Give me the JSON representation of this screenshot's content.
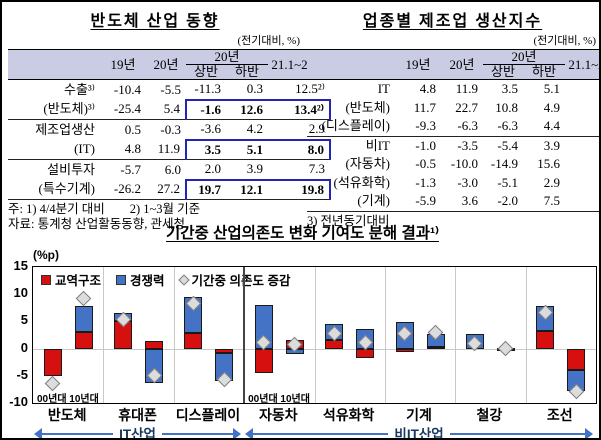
{
  "left_table": {
    "title": "반도체 산업 동향",
    "unit": "(전기대비, %)",
    "col_headers": {
      "y19": "19년",
      "y20": "20년",
      "y20_group": "20년",
      "half1": "상반",
      "half2": "하반",
      "recent": "21.1~2월¹⁾"
    },
    "rows": [
      {
        "label": "수출³⁾",
        "values": [
          "-10.4",
          "-5.5",
          "-11.3",
          "0.3",
          "12.5²⁾"
        ],
        "boxed": false,
        "sep": false
      },
      {
        "label": "(반도체)³⁾",
        "values": [
          "-25.4",
          "5.4",
          "-1.6",
          "12.6",
          "13.4²⁾"
        ],
        "boxed": true,
        "sep": true
      },
      {
        "label": "제조업생산",
        "values": [
          "0.5",
          "-0.3",
          "-3.6",
          "4.2",
          "2.9"
        ],
        "boxed": false,
        "sep": false
      },
      {
        "label": "(IT)",
        "values": [
          "4.8",
          "11.9",
          "3.5",
          "5.1",
          "8.0"
        ],
        "boxed": true,
        "sep": true
      },
      {
        "label": "설비투자",
        "values": [
          "-5.7",
          "6.0",
          "2.0",
          "3.9",
          "7.3"
        ],
        "boxed": false,
        "sep": false
      },
      {
        "label": "(특수기계)",
        "values": [
          "-26.2",
          "27.2",
          "19.7",
          "12.1",
          "19.8"
        ],
        "boxed": true,
        "sep": true
      }
    ],
    "notes": [
      "주: 1) 4/4분기 대비        2) 1~3월 기준",
      "자료: 통계청 산업활동동향, 관세청"
    ]
  },
  "right_table": {
    "title": "업종별 제조업 생산지수",
    "unit": "(전기대비, %)",
    "col_headers": {
      "y19": "19년",
      "y20": "20년",
      "y20_group": "20년",
      "half1": "상반",
      "half2": "하반",
      "recent": "21.1~2월¹⁾"
    },
    "rows": [
      {
        "label": "IT",
        "values": [
          "4.8",
          "11.9",
          "3.5",
          "5.1",
          "8.0"
        ],
        "boxed": false,
        "sep": false
      },
      {
        "label": "(반도체)",
        "values": [
          "11.7",
          "22.7",
          "10.8",
          "4.9",
          "13.7"
        ],
        "boxed": false,
        "sep": false
      },
      {
        "label": "(디스플레이)",
        "values": [
          "-9.3",
          "-6.3",
          "-6.3",
          "4.4",
          "-5.7"
        ],
        "boxed": false,
        "sep": true
      },
      {
        "label": "비IT",
        "values": [
          "-1.0",
          "-3.5",
          "-5.4",
          "3.9",
          "1.6"
        ],
        "boxed": false,
        "sep": false
      },
      {
        "label": "(자동차)",
        "values": [
          "-0.5",
          "-10.0",
          "-14.9",
          "15.6",
          "5.7"
        ],
        "boxed": false,
        "sep": false
      },
      {
        "label": "(석유화학)",
        "values": [
          "-1.3",
          "-3.0",
          "-5.1",
          "2.9",
          "2.0"
        ],
        "boxed": false,
        "sep": false
      },
      {
        "label": "(기계)",
        "values": [
          "-5.9",
          "3.6",
          "-2.0",
          "7.5",
          "2.3"
        ],
        "boxed": false,
        "sep": true
      }
    ],
    "notes": [
      "3) 전년동기대비"
    ]
  },
  "chart_data": {
    "type": "bar",
    "subtype": "stacked-bars-with-diamond-marker",
    "title": "기간중 산업의존도 변화 기여도 분해 결과¹⁾",
    "unit_label": "(%p)",
    "ylim": [
      -10,
      15
    ],
    "y_ticks": [
      15,
      10,
      5,
      0,
      -5,
      -10
    ],
    "legend": [
      {
        "name": "교역구조",
        "color": "#d60f0f",
        "marker": "square"
      },
      {
        "name": "경쟁력",
        "color": "#4472c4",
        "marker": "square"
      },
      {
        "name": "기간중 의존도 증감",
        "color": "#dcdcdc",
        "marker": "diamond"
      }
    ],
    "decade_labels": "00년대 10년대",
    "groups": [
      {
        "label": "IT산업",
        "from": 0,
        "to": 3
      },
      {
        "label": "비IT산업",
        "from": 3,
        "to": 8
      }
    ],
    "categories": [
      "반도체",
      "휴대폰",
      "디스플레이",
      "자동차",
      "석유화학",
      "기계",
      "철강",
      "조선"
    ],
    "series_note": "per category: [00년대, 10년대]; values in %p",
    "bars": [
      {
        "category": "반도체",
        "decades": [
          {
            "red": -5.0,
            "blue": 0.0,
            "diamond": -6.5
          },
          {
            "red": 3.0,
            "blue": 4.8,
            "diamond": 9.2
          }
        ]
      },
      {
        "category": "휴대폰",
        "decades": [
          {
            "red": 5.1,
            "blue": 1.5,
            "diamond": 5.4
          },
          {
            "red": 1.4,
            "blue": -6.3,
            "diamond": -5.0
          }
        ]
      },
      {
        "category": "디스플레이",
        "decades": [
          {
            "red": 2.9,
            "blue": 6.5,
            "diamond": 8.3
          },
          {
            "red": -0.8,
            "blue": -5.1,
            "diamond": -5.6
          }
        ]
      },
      {
        "category": "자동차",
        "decades": [
          {
            "red": -4.5,
            "blue": 8.1,
            "diamond": 1.2
          },
          {
            "red": 1.5,
            "blue": -1.0,
            "diamond": 0.8
          }
        ]
      },
      {
        "category": "석유화학",
        "decades": [
          {
            "red": 1.5,
            "blue": 3.0,
            "diamond": 2.7
          },
          {
            "red": -1.8,
            "blue": 3.6,
            "diamond": 1.2
          }
        ]
      },
      {
        "category": "기계",
        "decades": [
          {
            "red": -0.6,
            "blue": 4.8,
            "diamond": 2.7
          },
          {
            "red": 0.3,
            "blue": 2.4,
            "diamond": 3.0
          }
        ]
      },
      {
        "category": "철강",
        "decades": [
          {
            "red": 0.0,
            "blue": 2.7,
            "diamond": 0.9
          },
          {
            "red": -0.4,
            "blue": 0.1,
            "diamond": 0.0
          }
        ]
      },
      {
        "category": "조선",
        "decades": [
          {
            "red": 3.3,
            "blue": 4.5,
            "diamond": 6.6
          },
          {
            "red": -3.9,
            "blue": -3.9,
            "diamond": -7.8
          }
        ]
      }
    ],
    "divider_after_category_index": 2,
    "grid": "zero-line and category separators"
  }
}
